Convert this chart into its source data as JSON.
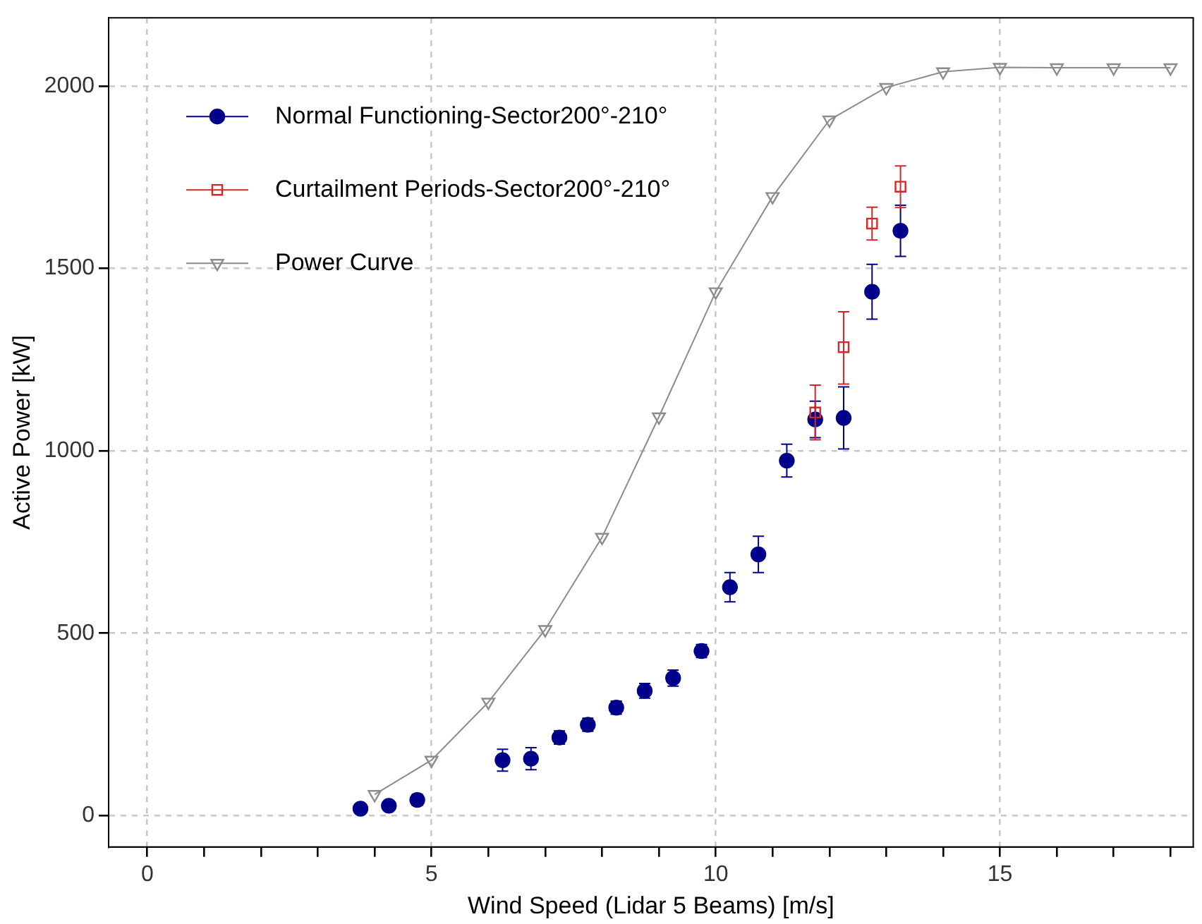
{
  "chart_data": {
    "type": "scatter",
    "xlabel": "Wind Speed (Lidar 5 Beams) [m/s]",
    "ylabel": "Active Power [kW]",
    "xlim": [
      -0.68,
      18.4
    ],
    "ylim": [
      -86,
      2187
    ],
    "xticks": [
      0,
      {
        "value": 1,
        "label": null
      },
      {
        "value": 2,
        "label": null
      },
      {
        "value": 3,
        "label": null
      },
      {
        "value": 4,
        "label": null
      },
      5,
      {
        "value": 6,
        "label": null
      },
      {
        "value": 7,
        "label": null
      },
      {
        "value": 8,
        "label": null
      },
      {
        "value": 9,
        "label": null
      },
      10,
      {
        "value": 11,
        "label": null
      },
      {
        "value": 12,
        "label": null
      },
      {
        "value": 13,
        "label": null
      },
      {
        "value": 14,
        "label": null
      },
      15,
      {
        "value": 16,
        "label": null
      },
      {
        "value": 17,
        "label": null
      },
      {
        "value": 18,
        "label": null
      }
    ],
    "yticks": [
      0,
      500,
      1000,
      1500,
      2000
    ],
    "grid": true,
    "legend": "top left",
    "series": [
      {
        "name": "Normal Functioning-Sector200°-210°",
        "type": "scatter",
        "marker": "circle",
        "color": "#00008b",
        "x": [
          3.75,
          4.25,
          4.75,
          6.25,
          6.75,
          7.25,
          7.75,
          8.25,
          8.75,
          9.25,
          9.75,
          10.25,
          10.75,
          11.25,
          11.75,
          12.25,
          12.75,
          13.25
        ],
        "values": [
          19,
          27,
          43,
          152,
          156,
          214,
          249,
          296,
          342,
          377,
          451,
          626,
          716,
          973,
          1086,
          1090,
          1436,
          1603
        ],
        "errors": [
          8,
          8,
          15,
          30,
          30,
          18,
          18,
          18,
          20,
          22,
          18,
          40,
          50,
          45,
          50,
          85,
          75,
          70
        ]
      },
      {
        "name": "Curtailment Periods-Sector200°-210°",
        "type": "scatter",
        "marker": "square",
        "color": "#d62728",
        "x": [
          11.75,
          12.25,
          12.75,
          13.25
        ],
        "values": [
          1105,
          1284,
          1623,
          1724
        ],
        "errors": [
          75,
          [
            1183,
            1381
          ],
          45,
          57
        ]
      },
      {
        "name": "Power Curve",
        "type": "line",
        "marker": "triangle",
        "color": "#8c8c8c",
        "x": [
          4,
          5,
          6,
          7,
          8,
          9,
          10,
          11,
          12,
          13,
          14,
          15,
          16,
          17,
          18
        ],
        "values": [
          58,
          152,
          311,
          510,
          763,
          1093,
          1436,
          1697,
          1907,
          1996,
          2039,
          2051,
          2050,
          2050,
          2050
        ]
      }
    ]
  }
}
